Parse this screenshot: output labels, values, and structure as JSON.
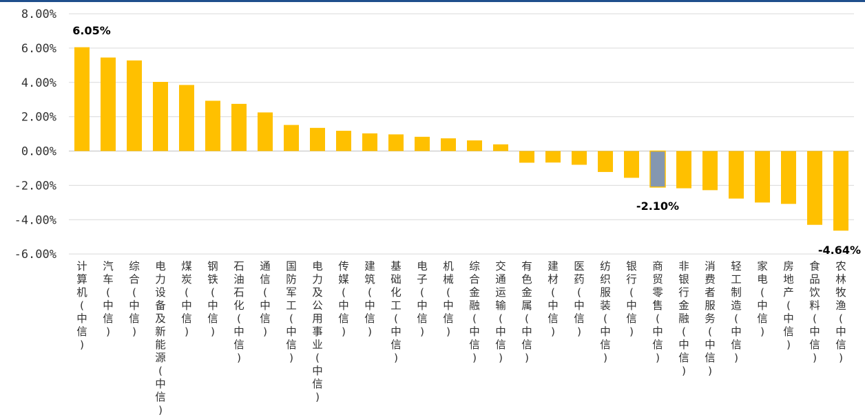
{
  "chart_data": {
    "type": "bar",
    "categories": [
      "计算机(中信)",
      "汽车(中信)",
      "综合(中信)",
      "电力设备及新能源(中信)",
      "煤炭(中信)",
      "钢铁(中信)",
      "石油石化(中信)",
      "通信(中信)",
      "国防军工(中信)",
      "电力及公用事业(中信)",
      "传媒(中信)",
      "建筑(中信)",
      "基础化工(中信)",
      "电子(中信)",
      "机械(中信)",
      "综合金融(中信)",
      "交通运输(中信)",
      "有色金属(中信)",
      "建材(中信)",
      "医药(中信)",
      "纺织服装(中信)",
      "银行(中信)",
      "商贸零售(中信)",
      "非银行金融(中信)",
      "消费者服务(中信)",
      "轻工制造(中信)",
      "家电(中信)",
      "房地产(中信)",
      "食品饮料(中信)",
      "农林牧渔(中信)"
    ],
    "values": [
      6.05,
      5.45,
      5.28,
      4.03,
      3.85,
      2.93,
      2.75,
      2.25,
      1.52,
      1.35,
      1.18,
      1.03,
      0.97,
      0.83,
      0.74,
      0.62,
      0.39,
      -0.68,
      -0.67,
      -0.8,
      -1.22,
      -1.56,
      -2.1,
      -2.17,
      -2.28,
      -2.77,
      -3.0,
      -3.08,
      -4.3,
      -4.64
    ],
    "highlight_index": 22,
    "colors": {
      "bar": "#ffc000",
      "highlight": "#8497b0",
      "highlight_border": "#ffc000"
    },
    "ylim": [
      -6,
      8
    ],
    "yticks": [
      8,
      6,
      4,
      2,
      0,
      -2,
      -4,
      -6
    ],
    "ytick_labels": [
      "8.00%",
      "6.00%",
      "4.00%",
      "2.00%",
      "0.00%",
      "-2.00%",
      "-4.00%",
      "-6.00%"
    ],
    "annotations": [
      {
        "index": 0,
        "text": "6.05%"
      },
      {
        "index": 22,
        "text": "-2.10%"
      },
      {
        "index": 29,
        "text": "-4.64%"
      }
    ],
    "grid": true,
    "legend": "none",
    "title": "",
    "xlabel": "",
    "ylabel": ""
  }
}
